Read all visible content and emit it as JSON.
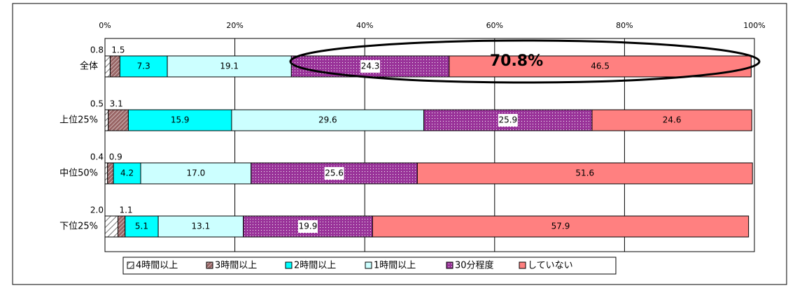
{
  "chart_data": {
    "type": "stacked_barh",
    "categories": [
      "全体",
      "上位25%",
      "中位50%",
      "下位25%"
    ],
    "series": [
      {
        "name": "4時間以上",
        "color": "#ffffff",
        "pattern": "hatch-light",
        "values": [
          0.8,
          0.5,
          0.4,
          2.0
        ],
        "value_labels": [
          "0.8",
          "0.5",
          "0.4",
          "2.0"
        ]
      },
      {
        "name": "3時間以上",
        "color": "#996666",
        "pattern": "hatch-dark",
        "values": [
          1.5,
          3.1,
          0.9,
          1.1
        ],
        "value_labels": [
          "1.5",
          "3.1",
          "0.9",
          "1.1"
        ]
      },
      {
        "name": "2時間以上",
        "color": "#00ffff",
        "values": [
          7.3,
          15.9,
          4.2,
          5.1
        ],
        "value_labels": [
          "7.3",
          "15.9",
          "4.2",
          "5.1"
        ]
      },
      {
        "name": "1時間以上",
        "color": "#ccffff",
        "values": [
          19.1,
          29.6,
          17.0,
          13.1
        ],
        "value_labels": [
          "19.1",
          "29.6",
          "17.0",
          "13.1"
        ]
      },
      {
        "name": "30分程度",
        "color": "#993399",
        "pattern": "dots",
        "values": [
          24.3,
          25.9,
          25.6,
          19.9
        ],
        "value_labels": [
          "24.3",
          "25.9",
          "25.6",
          "19.9"
        ]
      },
      {
        "name": "していない",
        "color": "#ff8080",
        "values": [
          46.5,
          24.6,
          51.6,
          57.9
        ],
        "value_labels": [
          "46.5",
          "24.6",
          "51.6",
          "57.9"
        ]
      }
    ],
    "xlim": [
      0,
      100
    ],
    "xticks": [
      {
        "value": 0,
        "label": "0%"
      },
      {
        "value": 20,
        "label": "20%"
      },
      {
        "value": 40,
        "label": "40%"
      },
      {
        "value": 60,
        "label": "60%"
      },
      {
        "value": 80,
        "label": "80%"
      },
      {
        "value": 100,
        "label": "100%"
      }
    ],
    "grid": true,
    "legend": "bottom",
    "annotation": "70.8%"
  }
}
